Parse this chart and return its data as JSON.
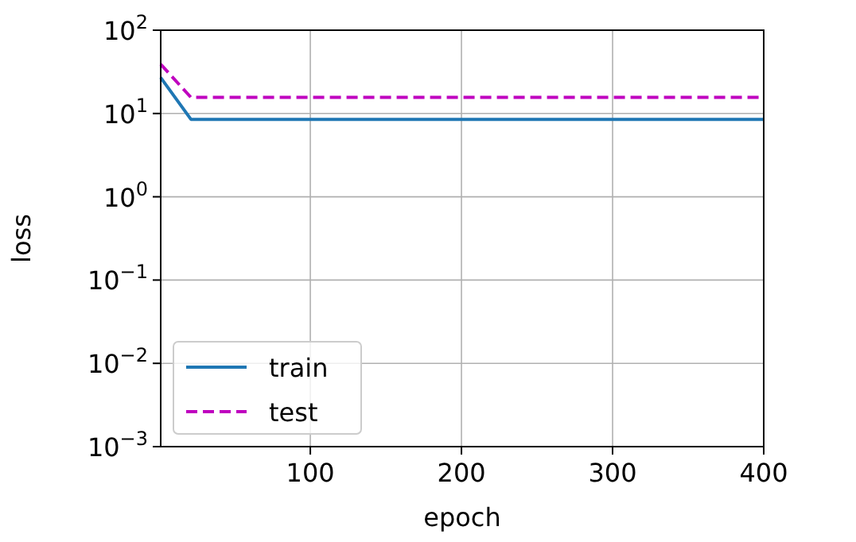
{
  "chart_data": {
    "type": "line",
    "xlabel": "epoch",
    "ylabel": "loss",
    "log": "y",
    "grid": true,
    "legend": "bottom left",
    "xlim": [
      1,
      400
    ],
    "xticks": [
      100,
      200,
      300,
      400
    ],
    "ylim": [
      0.001,
      100
    ],
    "yticks": [
      {
        "value": 0.001,
        "label": "10$^{−3}$"
      },
      {
        "value": 0.01,
        "label": "10$^{−2}$"
      },
      {
        "value": 0.1,
        "label": "10$^{−1}$"
      },
      {
        "value": 1,
        "label": "10$^{0}$"
      },
      {
        "value": 10,
        "label": "10$^{1}$"
      },
      {
        "value": 100,
        "label": "10$^{2}$"
      }
    ],
    "series": [
      {
        "name": "train",
        "color": "#1f77b4",
        "line_style": "solid",
        "x": [
          1,
          21,
          400
        ],
        "values": [
          27,
          8.5,
          8.5
        ]
      },
      {
        "name": "test",
        "color": "#bf00bf",
        "line_style": "dashed",
        "x": [
          1,
          21,
          400
        ],
        "values": [
          39,
          15.6,
          15.6
        ]
      }
    ]
  }
}
